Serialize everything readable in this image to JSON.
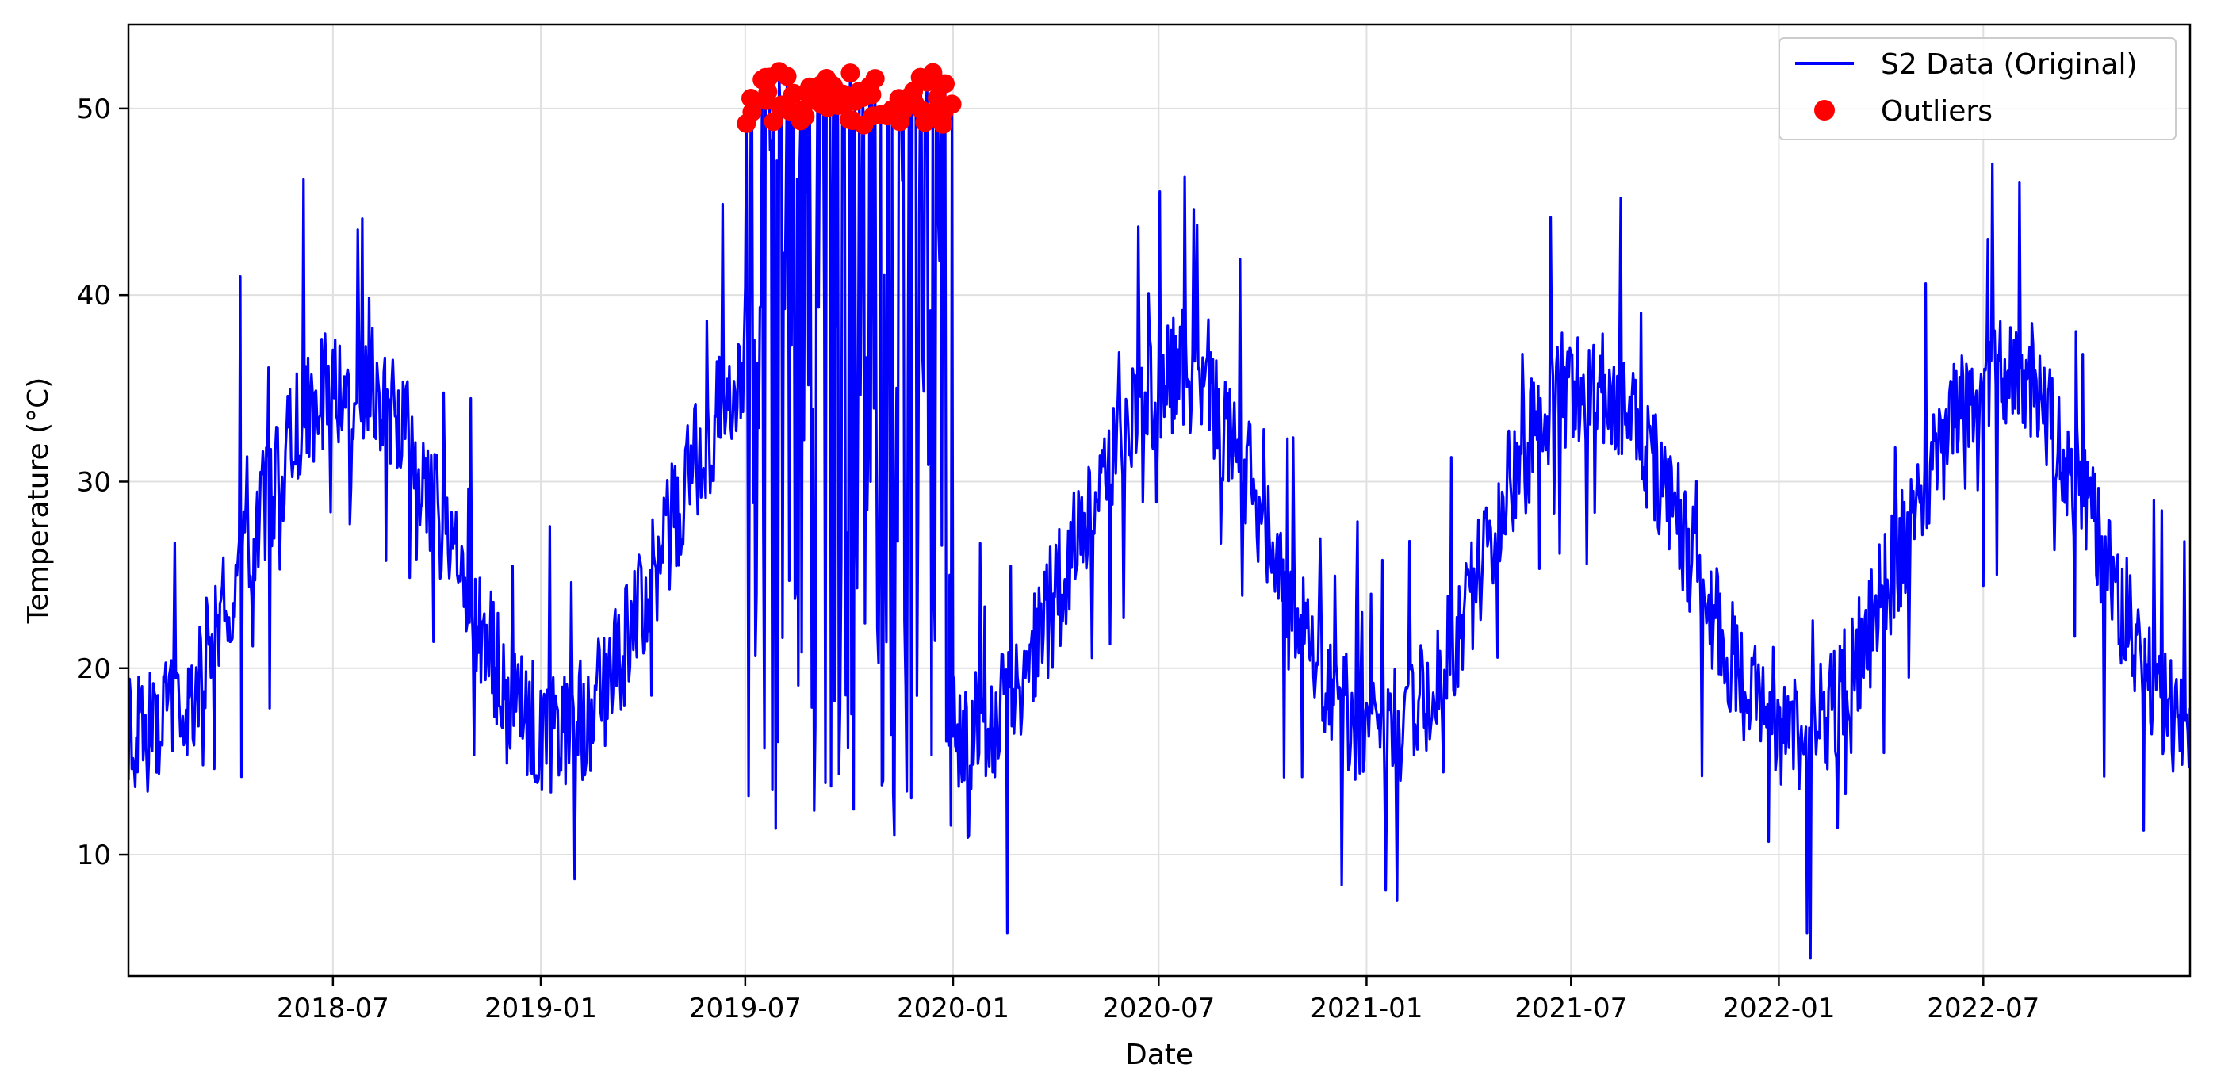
{
  "chart_data": {
    "type": "line",
    "title": "",
    "xlabel": "Date",
    "ylabel": "Temperature (°C)",
    "x_range": [
      "2018-01-01",
      "2022-12-31"
    ],
    "ylim": [
      3.5,
      54.5
    ],
    "x_ticks": [
      "2018-07",
      "2019-01",
      "2019-07",
      "2020-01",
      "2020-07",
      "2021-01",
      "2021-07",
      "2022-01",
      "2022-07"
    ],
    "y_ticks": [
      10,
      20,
      30,
      40,
      50
    ],
    "grid": true,
    "legend_position": "upper right",
    "series": [
      {
        "name": "S2 Data (Original)",
        "kind": "line",
        "color": "#0000ff",
        "frequency": "daily",
        "seasonal_mean": 26,
        "seasonal_amplitude": 9.5,
        "seasonal_peak_month": "July",
        "noise_range": 6
      },
      {
        "name": "Outliers",
        "kind": "scatter",
        "color": "#ff0000",
        "date_range": [
          "2019-07-01",
          "2019-12-31"
        ],
        "value_range": [
          49,
          52
        ]
      }
    ],
    "anomaly_segment": {
      "date_range": [
        "2019-07-01",
        "2019-12-31"
      ],
      "value_low": 11,
      "value_high": 52
    },
    "notable_points": [
      {
        "date": "2018-06-05",
        "value": 46.2
      },
      {
        "date": "2018-07-27",
        "value": 44.1
      },
      {
        "date": "2020-02-18",
        "value": 5.8
      },
      {
        "date": "2020-08-01",
        "value": 44.6
      },
      {
        "date": "2021-01-18",
        "value": 8.1
      },
      {
        "date": "2021-08-14",
        "value": 45.2
      },
      {
        "date": "2022-01-26",
        "value": 5.8
      },
      {
        "date": "2022-07-05",
        "value": 43.0
      },
      {
        "date": "2018-04-10",
        "value": 41.0
      },
      {
        "date": "2019-01-31",
        "value": 8.7
      }
    ]
  }
}
